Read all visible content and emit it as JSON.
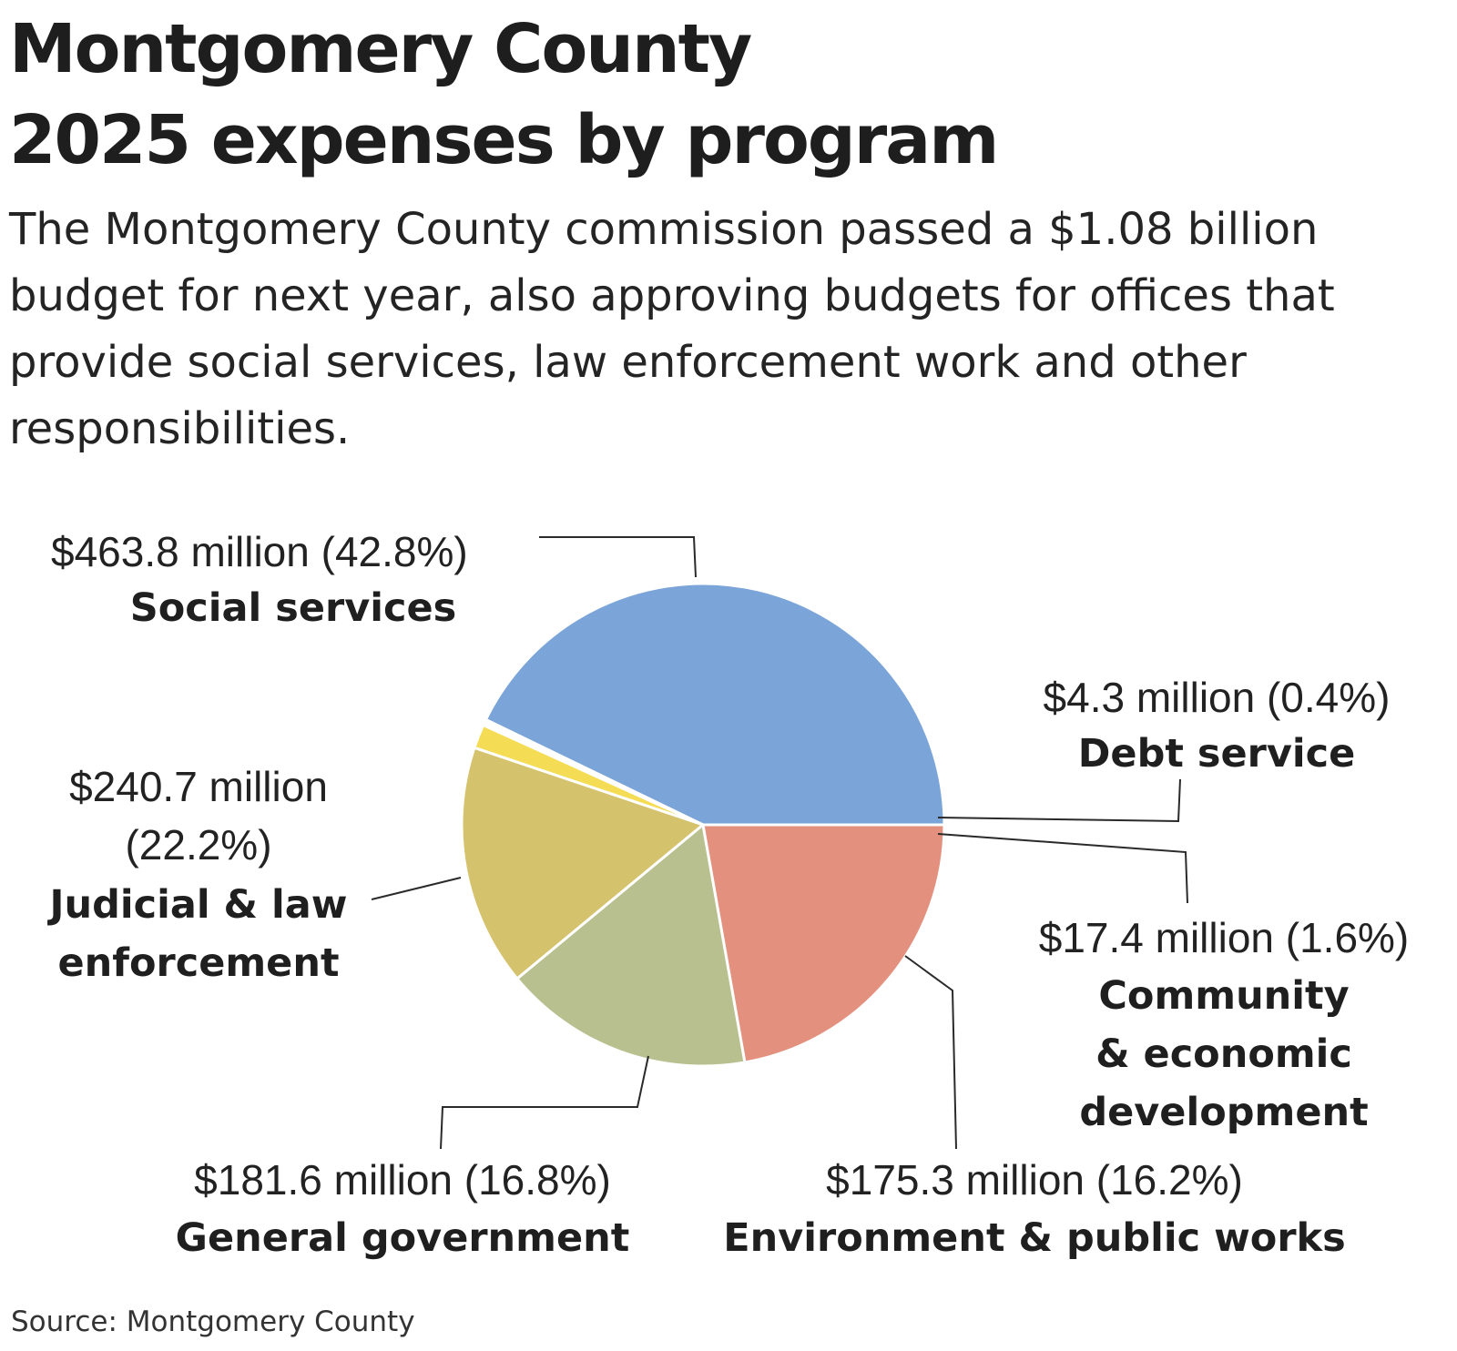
{
  "title_line1": "Montgomery County",
  "title_line2": "2025 expenses by program",
  "subtitle": "The Montgomery County commission passed a $1.08 billion budget for next year, also approving budgets for offices that provide social services, law enforcement work and other responsibilities.",
  "source": "Source: Montgomery County",
  "chart_data": {
    "type": "pie",
    "unit": "million",
    "slices": [
      {
        "category": "Social services",
        "value": 463.8,
        "percent": 42.8,
        "value_label": "$463.8 million (42.8%)",
        "category_lines": [
          "Social services"
        ],
        "color": "#7ba5d8"
      },
      {
        "category": "Debt service",
        "value": 4.3,
        "percent": 0.4,
        "value_label": "$4.3 million (0.4%)",
        "category_lines": [
          "Debt service"
        ],
        "color": "#ffffff"
      },
      {
        "category": "Community & economic development",
        "value": 17.4,
        "percent": 1.6,
        "value_label": "$17.4 million (1.6%)",
        "category_lines": [
          "Community",
          "& economic",
          "development"
        ],
        "color": "#f5dc55"
      },
      {
        "category": "Environment & public works",
        "value": 175.3,
        "percent": 16.2,
        "value_label": "$175.3 million (16.2%)",
        "category_lines": [
          "Environment & public works"
        ],
        "color": "#d5c26d"
      },
      {
        "category": "General government",
        "value": 181.6,
        "percent": 16.8,
        "value_label": "$181.6 million (16.8%)",
        "category_lines": [
          "General government"
        ],
        "color": "#b8c08f"
      },
      {
        "category": "Judicial & law enforcement",
        "value": 240.7,
        "percent": 22.2,
        "value_label_lines": [
          "$240.7 million",
          "(22.2%)"
        ],
        "category_lines": [
          "Judicial & law",
          "enforcement"
        ],
        "color": "#e3917e"
      }
    ]
  }
}
